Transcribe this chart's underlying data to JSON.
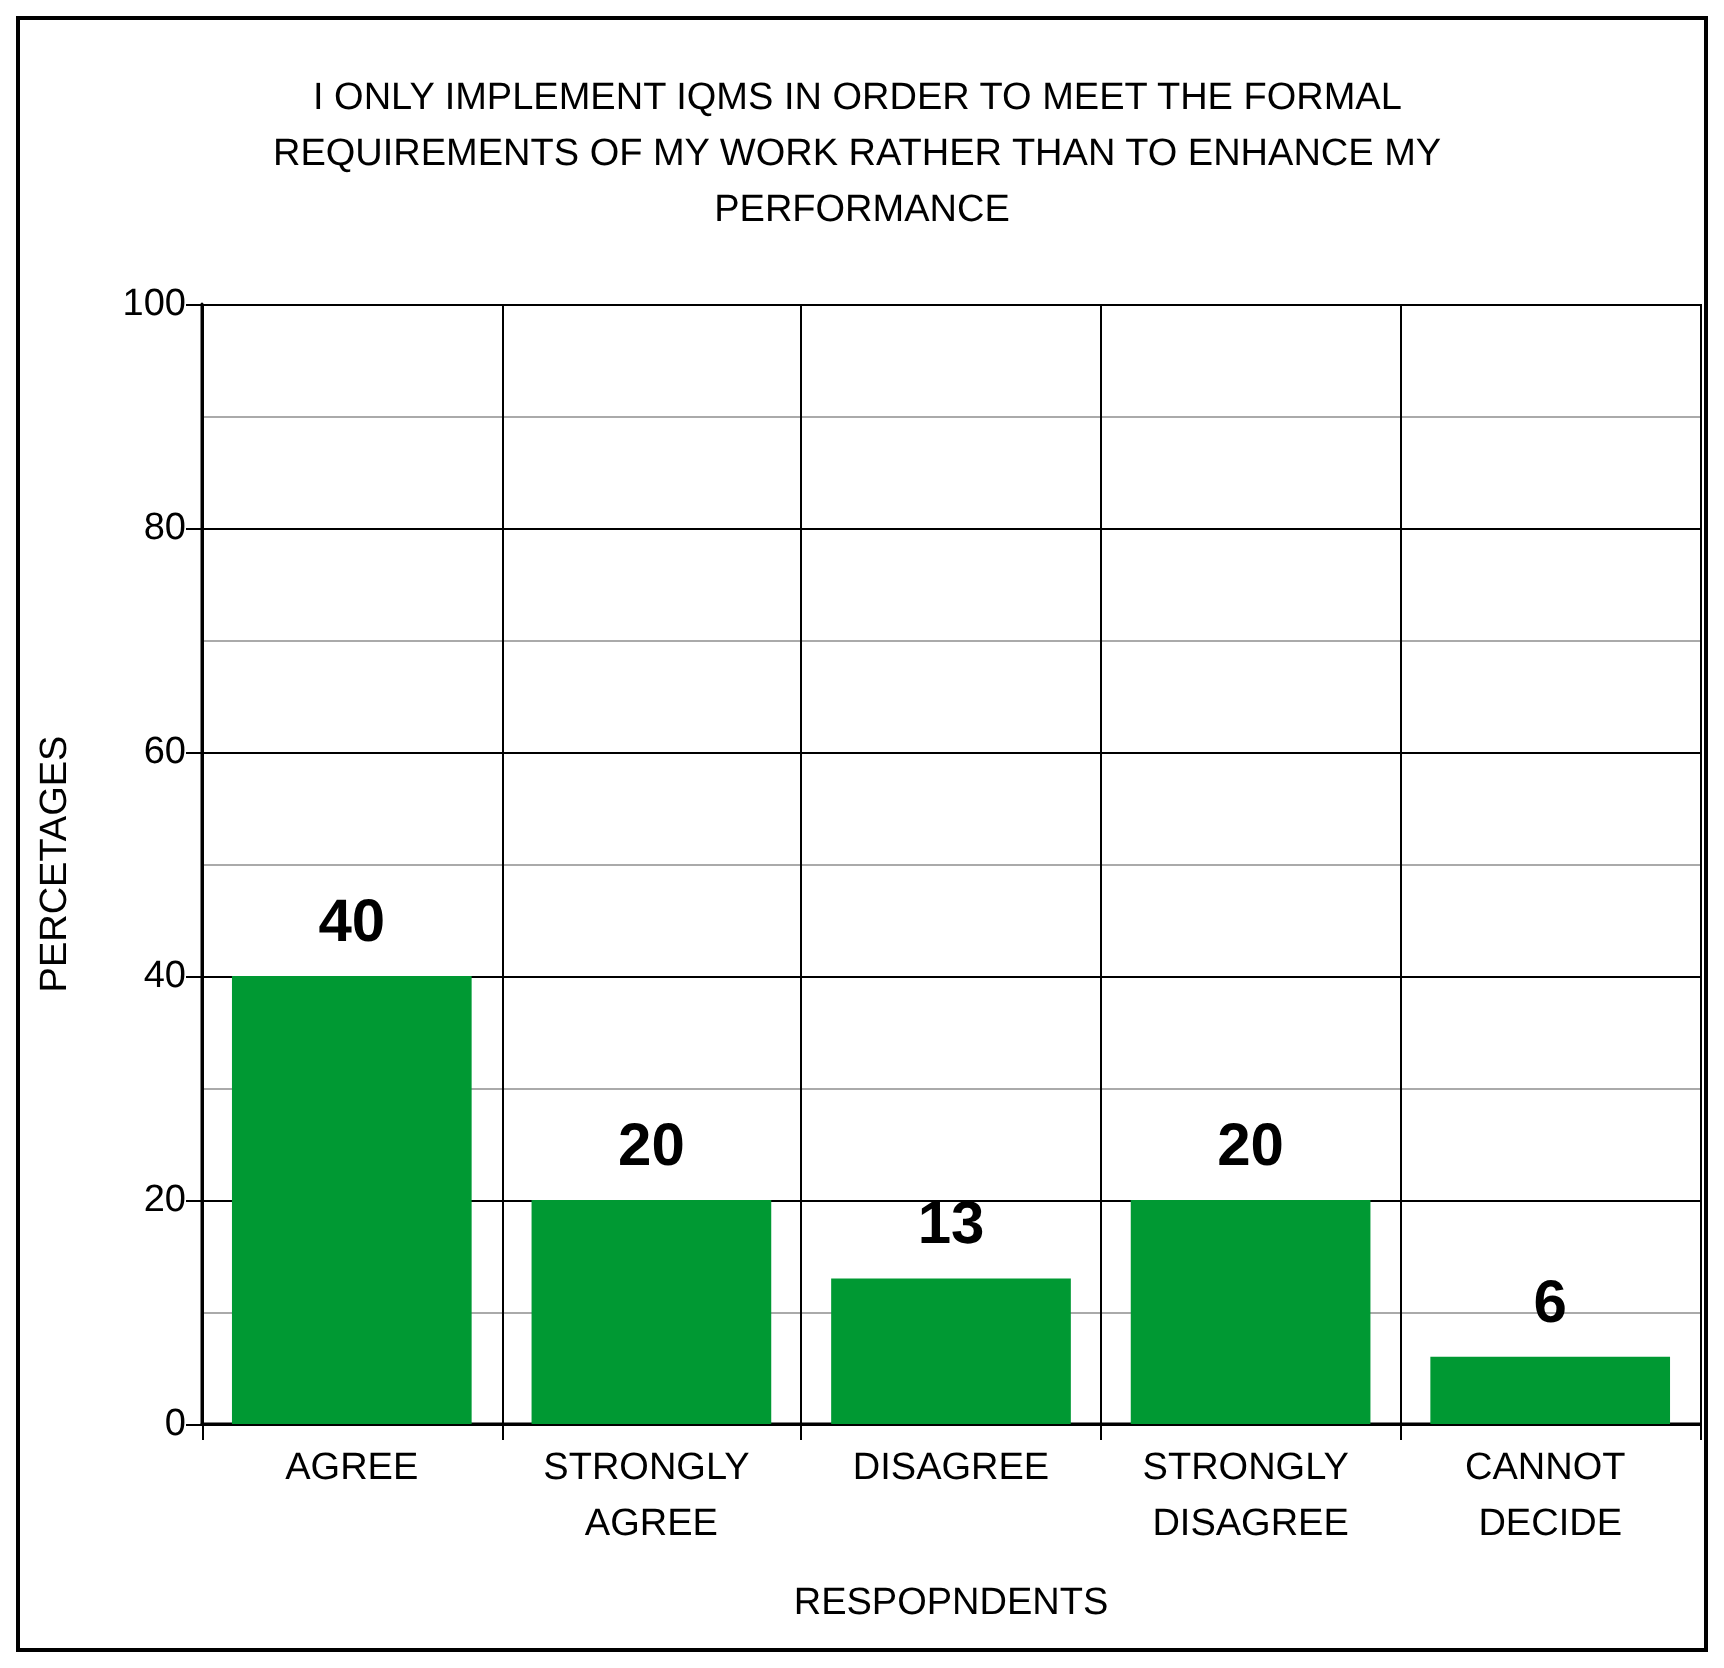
{
  "chart_data": {
    "type": "bar",
    "title": "I ONLY IMPLEMENT IQMS IN ORDER TO MEET THE FORMAL REQUIREMENTS OF MY WORK RATHER THAN TO ENHANCE MY PERFORMANCE",
    "xlabel": "RESPOPNDENTS",
    "ylabel": "PERCETAGES",
    "categories": [
      "AGREE",
      "STRONGLY AGREE",
      "DISAGREE",
      "STRONGLY DISAGREE",
      "CANNOT DECIDE"
    ],
    "values": [
      40,
      20,
      13,
      20,
      6
    ],
    "color": "#009933",
    "ylim": [
      0,
      100
    ],
    "yticks": [
      0,
      20,
      40,
      60,
      80,
      100
    ],
    "grid": true,
    "data_labels": true
  }
}
